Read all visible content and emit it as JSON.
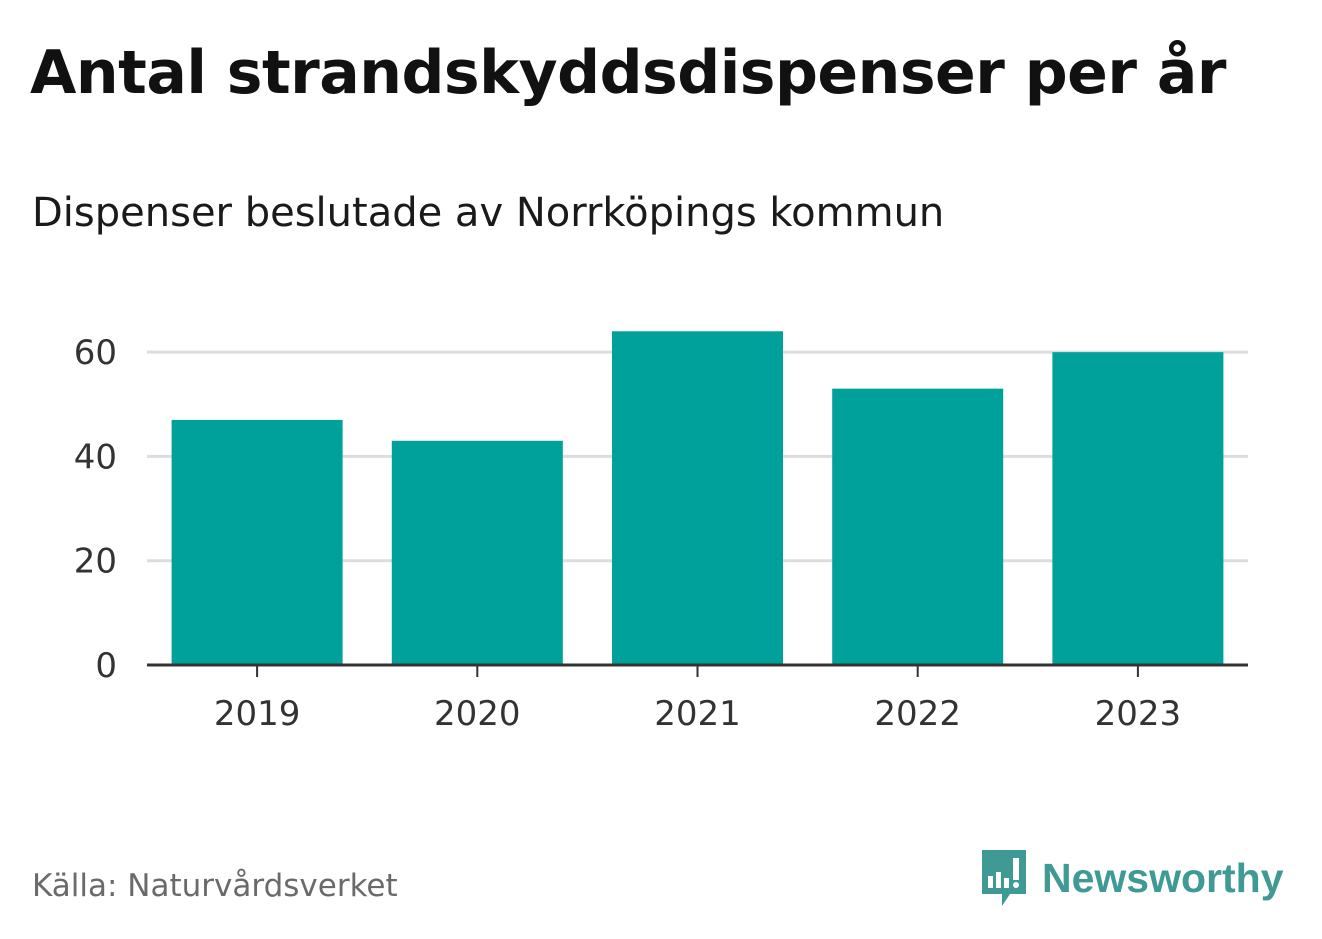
{
  "header": {
    "title": "Antal strandskyddsdispenser per år",
    "subtitle": "Dispenser beslutade av Norrköpings kommun"
  },
  "footer": {
    "source": "Källa: Naturvårdsverket",
    "brand": "Newsworthy",
    "brand_color": "#3f9a95"
  },
  "colors": {
    "bar": "#00a19a",
    "grid": "#dddddd",
    "axis": "#333333"
  },
  "chart_data": {
    "type": "bar",
    "title": "Antal strandskyddsdispenser per år",
    "subtitle": "Dispenser beslutade av Norrköpings kommun",
    "categories": [
      "2019",
      "2020",
      "2021",
      "2022",
      "2023"
    ],
    "values": [
      47,
      43,
      64,
      53,
      60
    ],
    "xlabel": "",
    "ylabel": "",
    "ylim": [
      0,
      70
    ],
    "yticks": [
      0,
      20,
      40,
      60
    ],
    "grid": true,
    "legend": "none"
  }
}
